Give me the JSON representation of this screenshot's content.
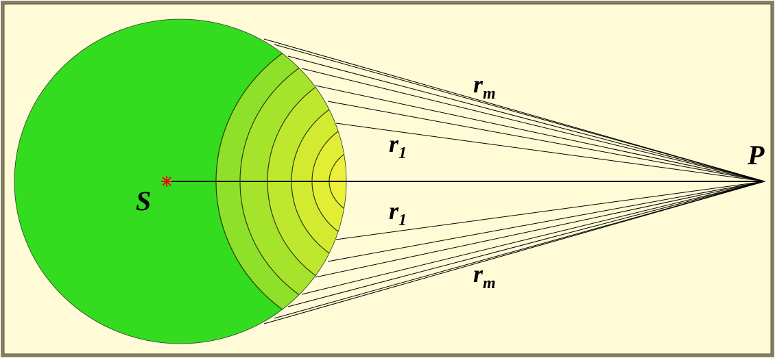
{
  "source": "S",
  "observer": "P",
  "distances": [
    {
      "symbol": "r",
      "subscript": "m"
    },
    {
      "symbol": "r",
      "subscript": "1"
    },
    {
      "symbol": "r",
      "subscript": "1"
    },
    {
      "symbol": "r",
      "subscript": "m"
    }
  ]
}
